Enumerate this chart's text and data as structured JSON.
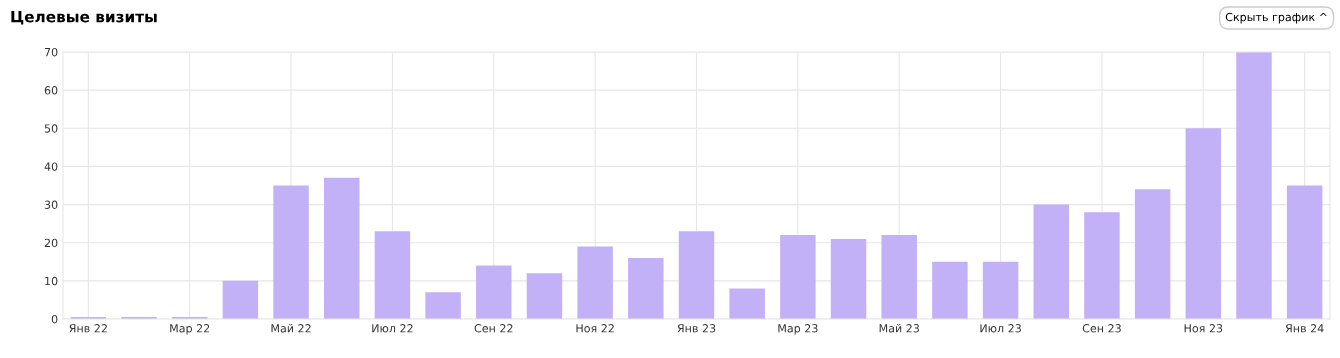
{
  "chart_data": {
    "type": "bar",
    "title": "Целевые визиты",
    "categories": [
      "Янв 22",
      null,
      "Мар 22",
      null,
      "Май 22",
      null,
      "Июл 22",
      null,
      "Сен 22",
      null,
      "Ноя 22",
      null,
      "Янв 23",
      null,
      "Мар 23",
      null,
      "Май 23",
      null,
      "Июл 23",
      null,
      "Сен 23",
      null,
      "Ноя 23",
      null,
      "Янв 24"
    ],
    "values": [
      0.5,
      0.5,
      0.5,
      10,
      35,
      37,
      23,
      7,
      14,
      12,
      19,
      16,
      23,
      8,
      22,
      21,
      22,
      15,
      15,
      30,
      28,
      34,
      50,
      70,
      35
    ],
    "color": "#c3b1f7",
    "ylim": [
      0,
      70
    ],
    "yticks": [
      0,
      10,
      20,
      30,
      40,
      50,
      60,
      70
    ],
    "grid": true,
    "annotations": [
      "Скрыть график ^"
    ]
  }
}
